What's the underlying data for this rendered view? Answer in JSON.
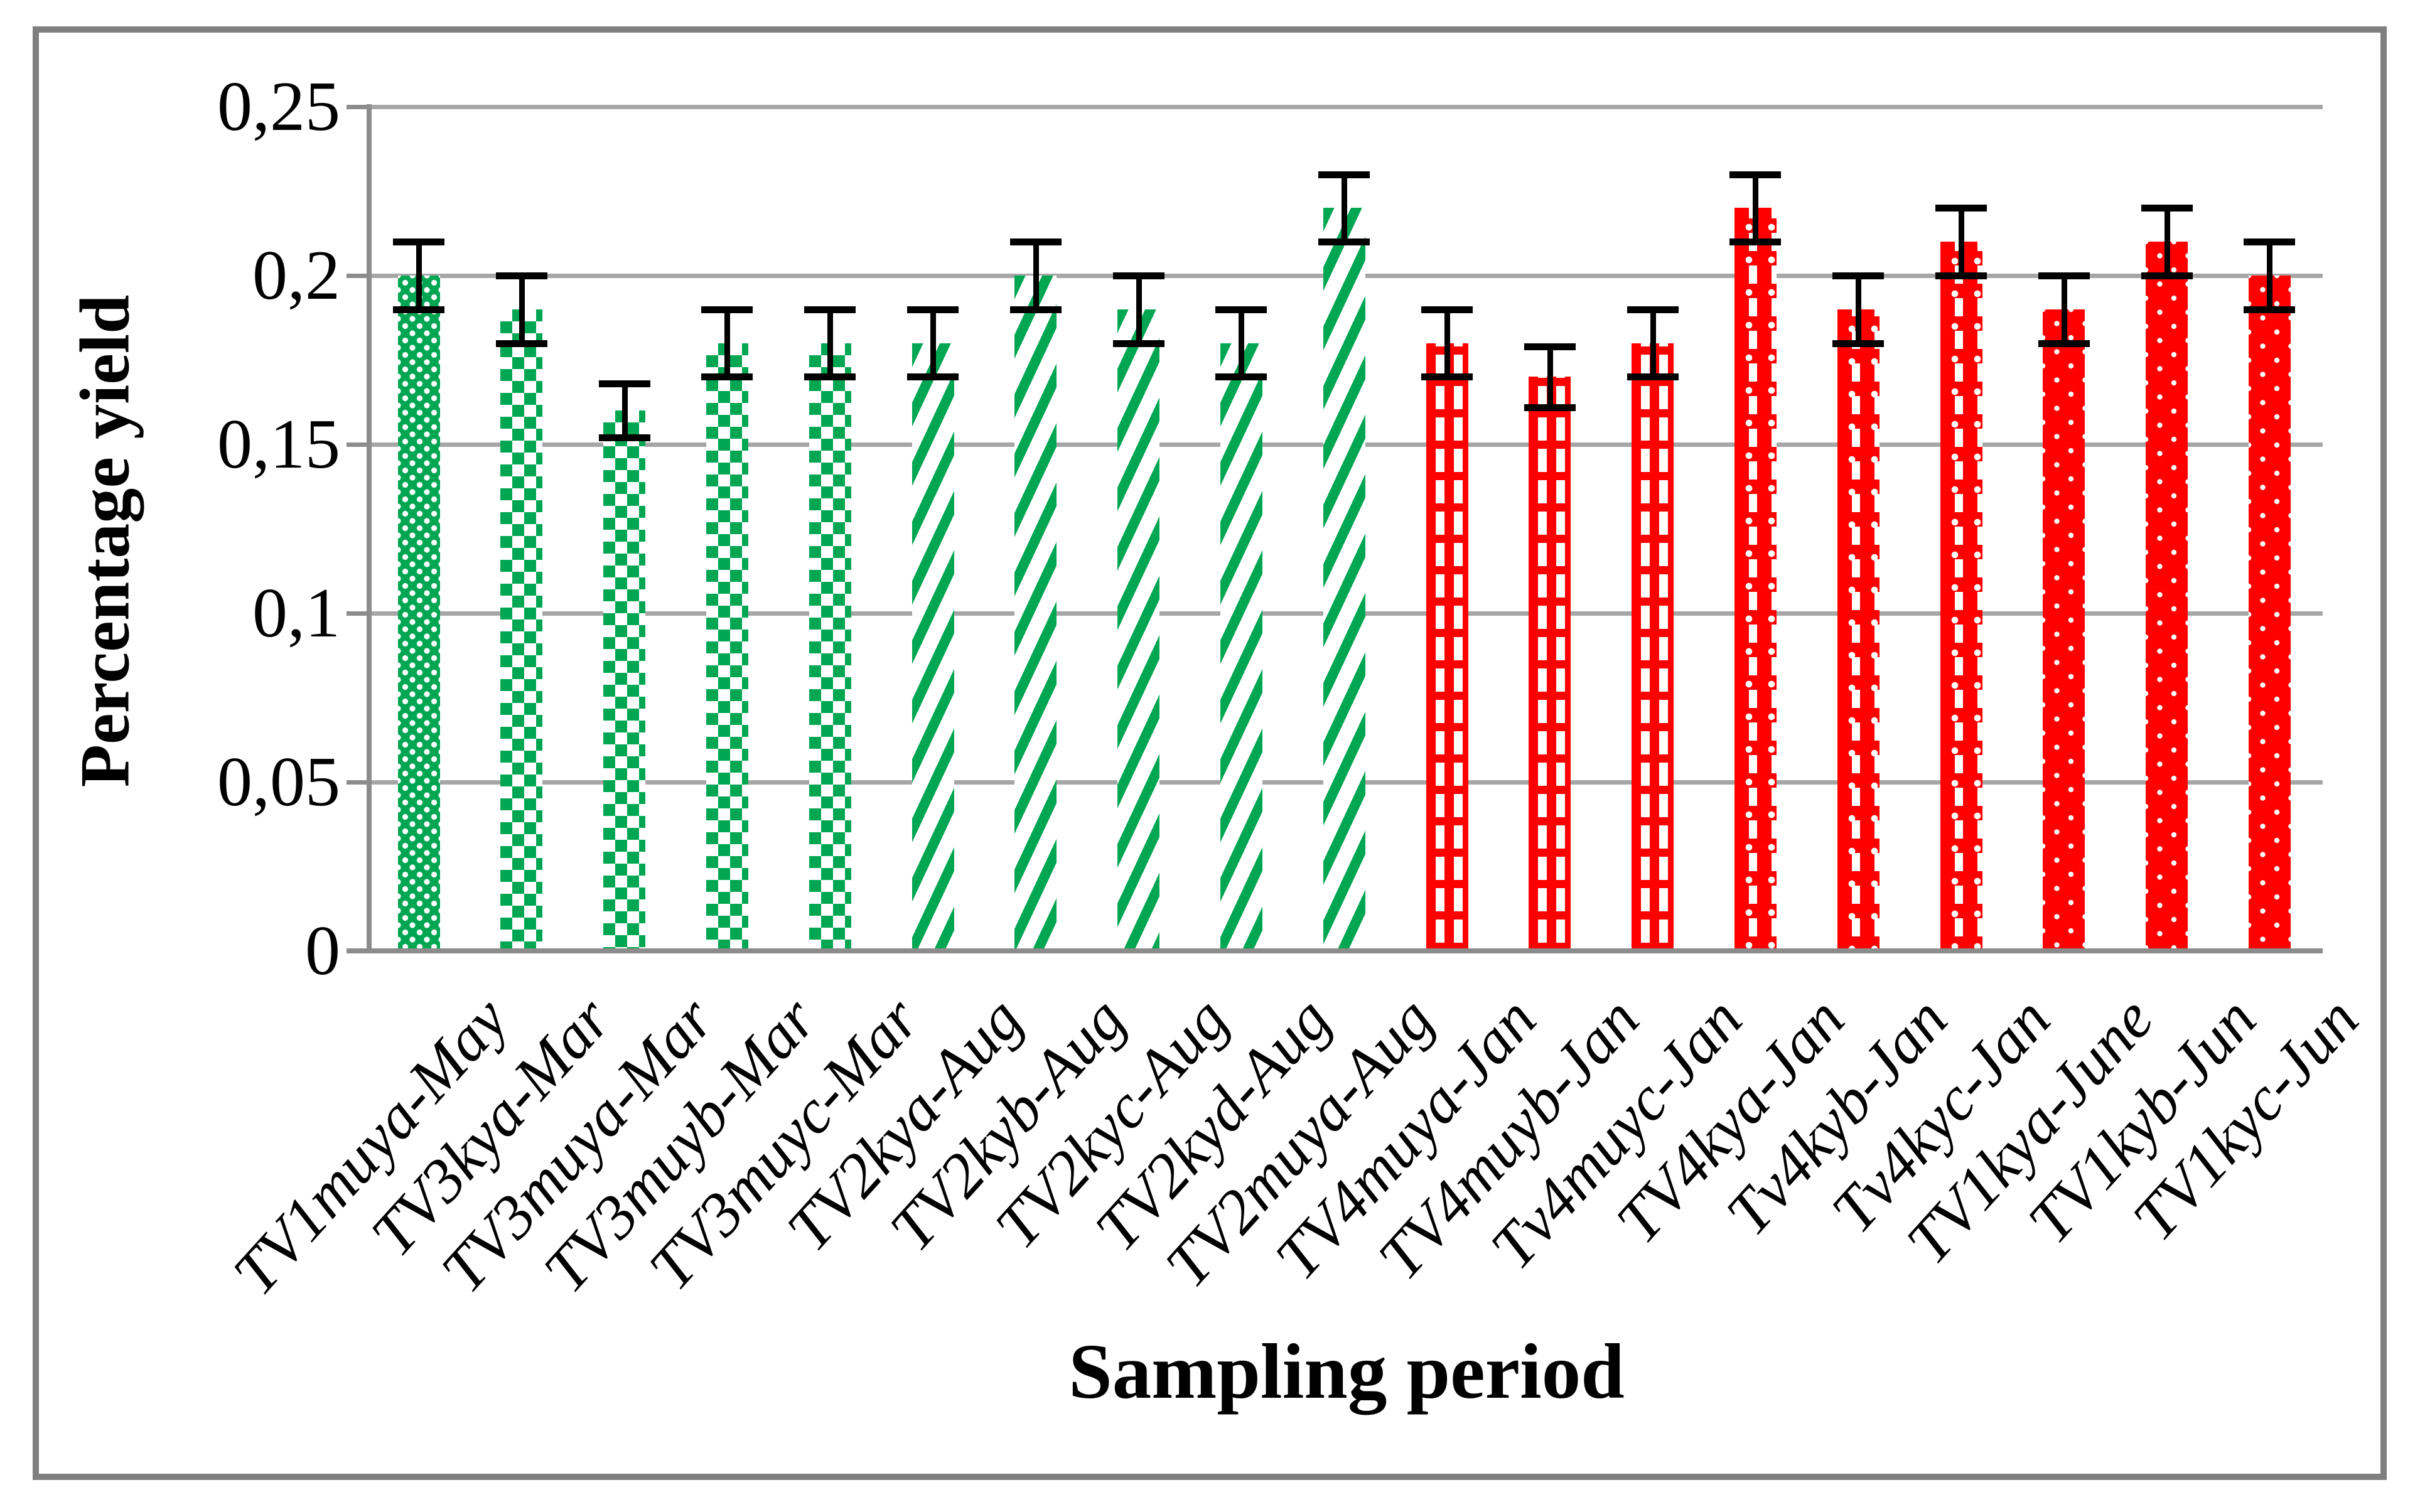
{
  "figure": {
    "background": "#ffffff",
    "frame_color": "#7f7f7f"
  },
  "chart_data": {
    "type": "bar",
    "title": "",
    "xlabel": "Sampling period",
    "ylabel": "Percentage yield",
    "ylim": [
      0,
      0.25
    ],
    "grid": true,
    "legend": "none",
    "decimal_separator": ",",
    "yticks": [
      {
        "value": 0,
        "label": "0"
      },
      {
        "value": 0.05,
        "label": "0,05"
      },
      {
        "value": 0.1,
        "label": "0,1"
      },
      {
        "value": 0.15,
        "label": "0,15"
      },
      {
        "value": 0.2,
        "label": "0,2"
      },
      {
        "value": 0.25,
        "label": "0,25"
      }
    ],
    "categories": [
      "TV1muya-May",
      "TV3kya-Mar",
      "TV3muya-Mar",
      "TV3muyb-Mar",
      "TV3muyc-Mar",
      "TV2kya-Aug",
      "TV2kyb-Aug",
      "TV2kyc-Aug",
      "TV2kyd-Aug",
      "TV2muya-Aug",
      "TV4muya-Jan",
      "TV4muyb-Jan",
      "Tv4muyc-Jan",
      "TV4kya-Jan",
      "Tv4kyb-Jan",
      "Tv4kyc-Jan",
      "TV1kya-June",
      "TV1kyb-Jun",
      "TV1kyc-Jun"
    ],
    "values": [
      0.2,
      0.19,
      0.16,
      0.18,
      0.18,
      0.18,
      0.2,
      0.19,
      0.18,
      0.22,
      0.18,
      0.17,
      0.18,
      0.22,
      0.19,
      0.21,
      0.19,
      0.21,
      0.2
    ],
    "errors": [
      0.01,
      0.01,
      0.008,
      0.01,
      0.01,
      0.01,
      0.01,
      0.01,
      0.01,
      0.01,
      0.01,
      0.009,
      0.01,
      0.01,
      0.01,
      0.01,
      0.01,
      0.01,
      0.01
    ],
    "bar_patterns": [
      "green-dots",
      "green-checker",
      "green-checker",
      "green-checker",
      "green-checker",
      "green-diag",
      "green-diag",
      "green-diag",
      "green-diag",
      "green-diag",
      "red-check-sm",
      "red-check-sm",
      "red-check-sm",
      "red-check-lg",
      "red-check-lg",
      "red-check-lg",
      "red-dots",
      "red-dots",
      "red-dots"
    ],
    "colors": {
      "green": "#00a651",
      "red": "#ff0000",
      "gridline": "#a6a6a6",
      "axis": "#8c8c8c",
      "error_bar": "#000000"
    }
  }
}
